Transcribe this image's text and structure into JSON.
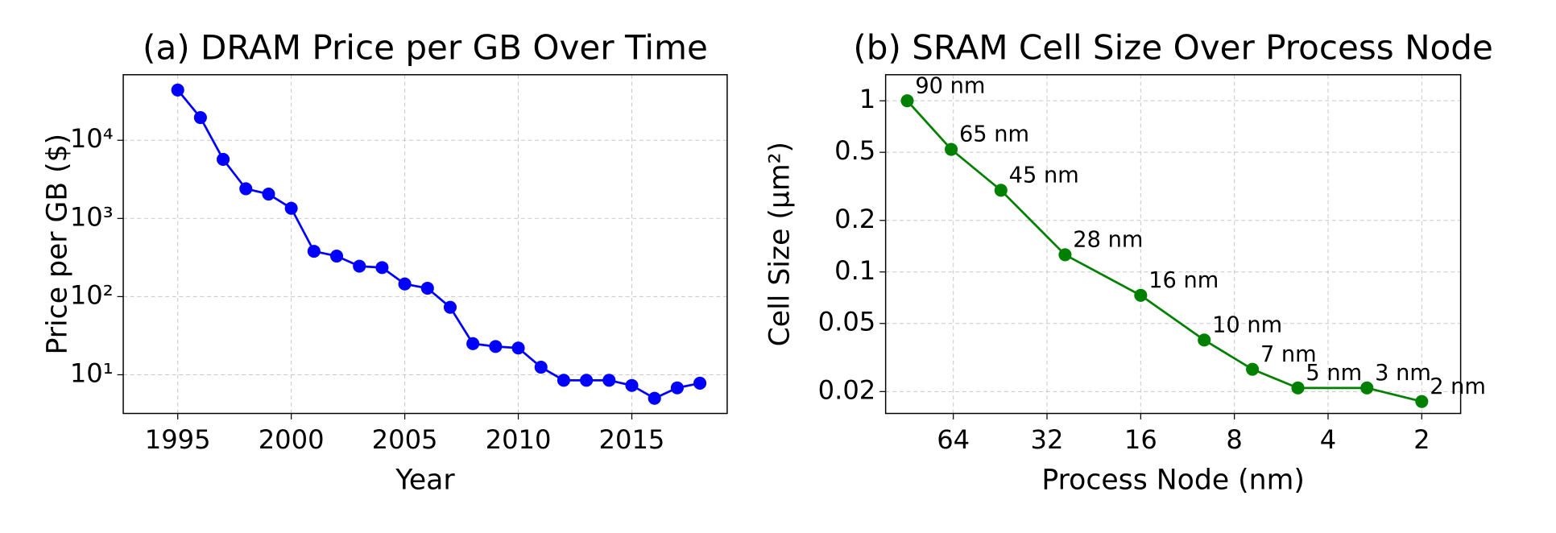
{
  "chart_data": [
    {
      "type": "line",
      "title": "(a) DRAM Price per GB Over Time",
      "xlabel": "Year",
      "ylabel": "Price per GB ($)",
      "x": [
        1995,
        1996,
        1997,
        1998,
        1999,
        2000,
        2001,
        2002,
        2003,
        2004,
        2005,
        2006,
        2007,
        2008,
        2009,
        2010,
        2011,
        2012,
        2013,
        2014,
        2015,
        2016,
        2017,
        2018
      ],
      "series": [
        {
          "color": "#0000ff",
          "values": [
            44000,
            19500,
            5700,
            2400,
            2050,
            1350,
            380,
            330,
            245,
            235,
            145,
            128,
            73,
            25,
            23,
            22,
            12.5,
            8.5,
            8.5,
            8.5,
            7.3,
            5,
            6.8,
            7.8
          ]
        }
      ],
      "xlim": [
        1992.6,
        2019.2
      ],
      "xticks": [
        1995,
        2000,
        2005,
        2010,
        2015
      ],
      "ylim": [
        3.2,
        69000
      ],
      "yscale": "log",
      "yticks": [
        {
          "value": 10,
          "label": "10¹"
        },
        {
          "value": 100,
          "label": "10²"
        },
        {
          "value": 1000,
          "label": "10³"
        },
        {
          "value": 10000,
          "label": "10⁴"
        }
      ],
      "grid": true
    },
    {
      "type": "line",
      "title": "(b) SRAM Cell Size Over Process Node",
      "xlabel": "Process Node (nm)",
      "ylabel": "Cell Size (µm²)",
      "x": [
        90,
        65,
        45,
        28,
        16,
        10,
        7,
        5,
        3,
        2
      ],
      "series": [
        {
          "color": "#008000",
          "values": [
            1.0,
            0.52,
            0.3,
            0.126,
            0.073,
            0.04,
            0.027,
            0.021,
            0.021,
            0.0175
          ],
          "labels": [
            "90 nm",
            "65 nm",
            "45 nm",
            "28 nm",
            "16 nm",
            "10 nm",
            "7 nm",
            "5 nm",
            "3 nm",
            "2 nm"
          ]
        }
      ],
      "xlim": [
        105.6,
        1.5
      ],
      "xscale": "log",
      "xticks": [
        64,
        32,
        16,
        8,
        4,
        2
      ],
      "ylim": [
        0.0149,
        1.42
      ],
      "yscale": "log",
      "yticks": [
        1,
        0.5,
        0.2,
        0.1,
        0.05,
        0.02
      ],
      "grid": true
    }
  ]
}
